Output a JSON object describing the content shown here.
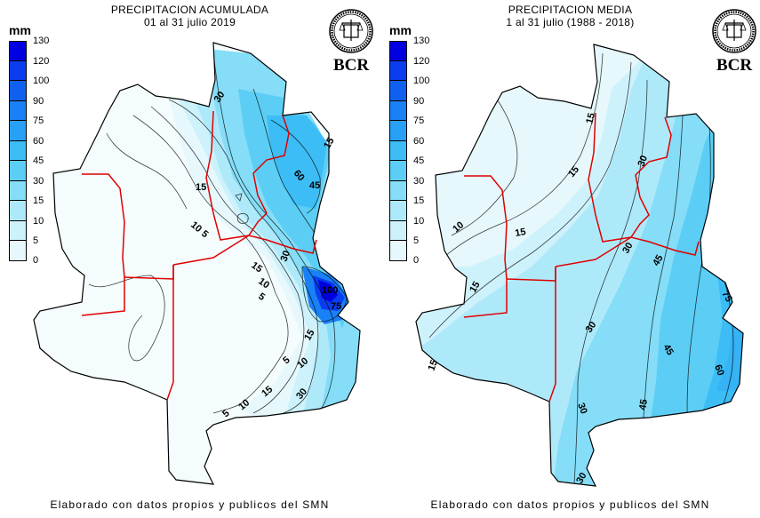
{
  "left": {
    "title_line1": "PRECIPITACION ACUMULADA",
    "title_line2": "01 al 31 julio 2019",
    "unit": "mm",
    "legend_values": [
      "130",
      "120",
      "100",
      "90",
      "75",
      "60",
      "45",
      "30",
      "15",
      "10",
      "5",
      "0"
    ],
    "contour_labels": [
      "30",
      "15",
      "60",
      "45",
      "15",
      "10",
      "5",
      "15",
      "10",
      "5",
      "30",
      "100",
      "75",
      "15",
      "5",
      "10",
      "15",
      "30",
      "5",
      "10"
    ],
    "logo_text": "BCR",
    "footer": "Elaborado con datos propios y publicos del SMN"
  },
  "right": {
    "title_line1": "PRECIPITACION MEDIA",
    "title_line2": "1 al 31 julio (1988 - 2018)",
    "unit": "mm",
    "legend_values": [
      "130",
      "120",
      "100",
      "90",
      "75",
      "60",
      "45",
      "30",
      "15",
      "10",
      "5",
      "0"
    ],
    "contour_labels": [
      "15",
      "30",
      "15",
      "10",
      "15",
      "30",
      "45",
      "15",
      "75",
      "30",
      "45",
      "60",
      "45",
      "30",
      "30",
      "15"
    ],
    "logo_text": "BCR",
    "footer": "Elaborado con datos propios y publicos del SMN"
  },
  "legend_colors": [
    "#0000e0",
    "#0a3df0",
    "#1060f0",
    "#1a80f5",
    "#28a0f5",
    "#3cbdf5",
    "#5ccef5",
    "#85ddf7",
    "#aee9fa",
    "#cdf2fb",
    "#e6f8fc",
    "#f5fcfe"
  ]
}
